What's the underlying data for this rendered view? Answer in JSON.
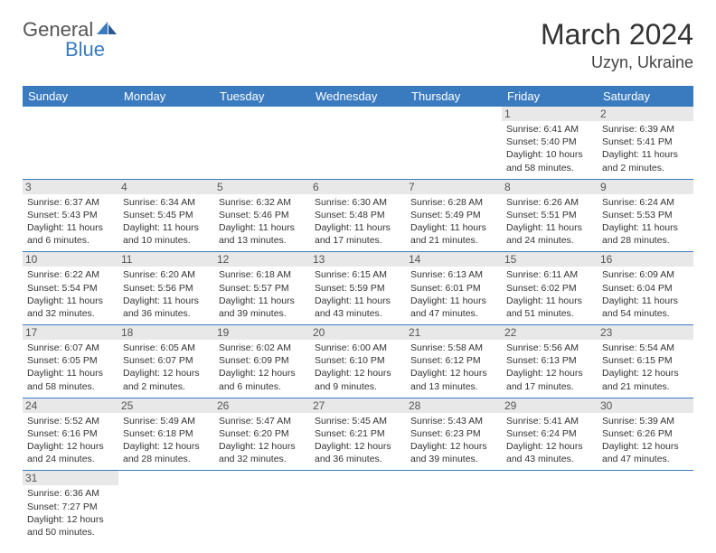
{
  "logo": {
    "text1": "General",
    "text2": "Blue"
  },
  "title": "March 2024",
  "location": "Uzyn, Ukraine",
  "headers": [
    "Sunday",
    "Monday",
    "Tuesday",
    "Wednesday",
    "Thursday",
    "Friday",
    "Saturday"
  ],
  "colors": {
    "header_bg": "#3a7bc0",
    "header_fg": "#ffffff",
    "daynum_bg": "#e8e8e8",
    "daynum_fg": "#555555",
    "border": "#3a7bc0",
    "logo_gray": "#555555",
    "logo_blue": "#3a7bc0"
  },
  "weeks": [
    [
      null,
      null,
      null,
      null,
      null,
      {
        "n": "1",
        "sr": "6:41 AM",
        "ss": "5:40 PM",
        "dl": "10 hours and 58 minutes."
      },
      {
        "n": "2",
        "sr": "6:39 AM",
        "ss": "5:41 PM",
        "dl": "11 hours and 2 minutes."
      }
    ],
    [
      {
        "n": "3",
        "sr": "6:37 AM",
        "ss": "5:43 PM",
        "dl": "11 hours and 6 minutes."
      },
      {
        "n": "4",
        "sr": "6:34 AM",
        "ss": "5:45 PM",
        "dl": "11 hours and 10 minutes."
      },
      {
        "n": "5",
        "sr": "6:32 AM",
        "ss": "5:46 PM",
        "dl": "11 hours and 13 minutes."
      },
      {
        "n": "6",
        "sr": "6:30 AM",
        "ss": "5:48 PM",
        "dl": "11 hours and 17 minutes."
      },
      {
        "n": "7",
        "sr": "6:28 AM",
        "ss": "5:49 PM",
        "dl": "11 hours and 21 minutes."
      },
      {
        "n": "8",
        "sr": "6:26 AM",
        "ss": "5:51 PM",
        "dl": "11 hours and 24 minutes."
      },
      {
        "n": "9",
        "sr": "6:24 AM",
        "ss": "5:53 PM",
        "dl": "11 hours and 28 minutes."
      }
    ],
    [
      {
        "n": "10",
        "sr": "6:22 AM",
        "ss": "5:54 PM",
        "dl": "11 hours and 32 minutes."
      },
      {
        "n": "11",
        "sr": "6:20 AM",
        "ss": "5:56 PM",
        "dl": "11 hours and 36 minutes."
      },
      {
        "n": "12",
        "sr": "6:18 AM",
        "ss": "5:57 PM",
        "dl": "11 hours and 39 minutes."
      },
      {
        "n": "13",
        "sr": "6:15 AM",
        "ss": "5:59 PM",
        "dl": "11 hours and 43 minutes."
      },
      {
        "n": "14",
        "sr": "6:13 AM",
        "ss": "6:01 PM",
        "dl": "11 hours and 47 minutes."
      },
      {
        "n": "15",
        "sr": "6:11 AM",
        "ss": "6:02 PM",
        "dl": "11 hours and 51 minutes."
      },
      {
        "n": "16",
        "sr": "6:09 AM",
        "ss": "6:04 PM",
        "dl": "11 hours and 54 minutes."
      }
    ],
    [
      {
        "n": "17",
        "sr": "6:07 AM",
        "ss": "6:05 PM",
        "dl": "11 hours and 58 minutes."
      },
      {
        "n": "18",
        "sr": "6:05 AM",
        "ss": "6:07 PM",
        "dl": "12 hours and 2 minutes."
      },
      {
        "n": "19",
        "sr": "6:02 AM",
        "ss": "6:09 PM",
        "dl": "12 hours and 6 minutes."
      },
      {
        "n": "20",
        "sr": "6:00 AM",
        "ss": "6:10 PM",
        "dl": "12 hours and 9 minutes."
      },
      {
        "n": "21",
        "sr": "5:58 AM",
        "ss": "6:12 PM",
        "dl": "12 hours and 13 minutes."
      },
      {
        "n": "22",
        "sr": "5:56 AM",
        "ss": "6:13 PM",
        "dl": "12 hours and 17 minutes."
      },
      {
        "n": "23",
        "sr": "5:54 AM",
        "ss": "6:15 PM",
        "dl": "12 hours and 21 minutes."
      }
    ],
    [
      {
        "n": "24",
        "sr": "5:52 AM",
        "ss": "6:16 PM",
        "dl": "12 hours and 24 minutes."
      },
      {
        "n": "25",
        "sr": "5:49 AM",
        "ss": "6:18 PM",
        "dl": "12 hours and 28 minutes."
      },
      {
        "n": "26",
        "sr": "5:47 AM",
        "ss": "6:20 PM",
        "dl": "12 hours and 32 minutes."
      },
      {
        "n": "27",
        "sr": "5:45 AM",
        "ss": "6:21 PM",
        "dl": "12 hours and 36 minutes."
      },
      {
        "n": "28",
        "sr": "5:43 AM",
        "ss": "6:23 PM",
        "dl": "12 hours and 39 minutes."
      },
      {
        "n": "29",
        "sr": "5:41 AM",
        "ss": "6:24 PM",
        "dl": "12 hours and 43 minutes."
      },
      {
        "n": "30",
        "sr": "5:39 AM",
        "ss": "6:26 PM",
        "dl": "12 hours and 47 minutes."
      }
    ],
    [
      {
        "n": "31",
        "sr": "6:36 AM",
        "ss": "7:27 PM",
        "dl": "12 hours and 50 minutes."
      },
      null,
      null,
      null,
      null,
      null,
      null
    ]
  ],
  "labels": {
    "sunrise": "Sunrise: ",
    "sunset": "Sunset: ",
    "daylight": "Daylight: "
  }
}
